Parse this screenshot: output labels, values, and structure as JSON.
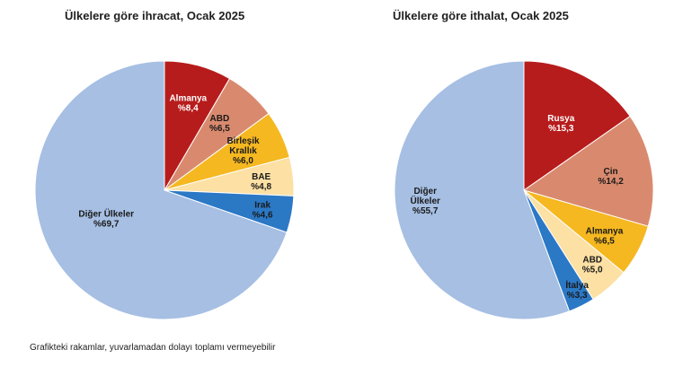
{
  "chart_data": [
    {
      "type": "pie",
      "title": "Ülkelere göre ihracat, Ocak 2025",
      "slices": [
        {
          "lines": [
            "Almanya",
            "%8,4"
          ],
          "value": 8.4,
          "color": "#b71c1c",
          "text": "#ffffff"
        },
        {
          "lines": [
            "ABD",
            "%6,5"
          ],
          "value": 6.5,
          "color": "#d98a6e",
          "text": "#1a1a1a"
        },
        {
          "lines": [
            "Birleşik",
            "Krallık",
            "%6,0"
          ],
          "value": 6.0,
          "color": "#f5b820",
          "text": "#1a1a1a"
        },
        {
          "lines": [
            "BAE",
            "%4,8"
          ],
          "value": 4.8,
          "color": "#fce0a4",
          "text": "#1a1a1a"
        },
        {
          "lines": [
            "Irak",
            "%4,6"
          ],
          "value": 4.6,
          "color": "#2b78c5",
          "text": "#1a1a1a"
        },
        {
          "lines": [
            "Diğer Ülkeler",
            "%69,7"
          ],
          "value": 69.7,
          "color": "#a6bfe3",
          "text": "#1a1a1a"
        }
      ]
    },
    {
      "type": "pie",
      "title": "Ülkelere göre ithalat, Ocak 2025",
      "slices": [
        {
          "lines": [
            "Rusya",
            "%15,3"
          ],
          "value": 15.3,
          "color": "#b71c1c",
          "text": "#ffffff"
        },
        {
          "lines": [
            "Çin",
            "%14,2"
          ],
          "value": 14.2,
          "color": "#d98a6e",
          "text": "#1a1a1a"
        },
        {
          "lines": [
            "Almanya",
            "%6,5"
          ],
          "value": 6.5,
          "color": "#f5b820",
          "text": "#1a1a1a"
        },
        {
          "lines": [
            "ABD",
            "%5,0"
          ],
          "value": 5.0,
          "color": "#fce0a4",
          "text": "#1a1a1a"
        },
        {
          "lines": [
            "İtalya",
            "%3,3"
          ],
          "value": 3.3,
          "color": "#2b78c5",
          "text": "#1a1a1a"
        },
        {
          "lines": [
            "Diğer",
            "Ülkeler",
            "%55,7"
          ],
          "value": 55.7,
          "color": "#a6bfe3",
          "text": "#1a1a1a"
        }
      ]
    }
  ],
  "footnote": "Grafikteki rakamlar, yuvarlamadan dolayı toplamı vermeyebilir"
}
